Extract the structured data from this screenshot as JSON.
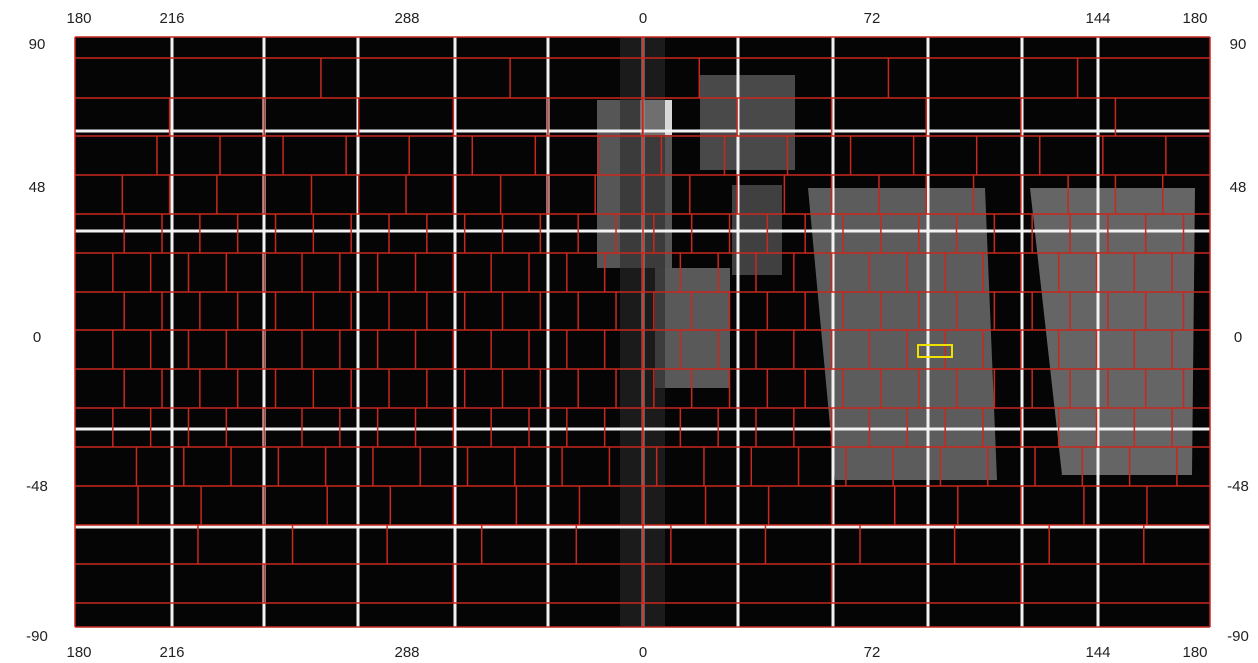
{
  "map": {
    "longitude_labels": [
      "180",
      "216",
      "288",
      "0",
      "72",
      "144",
      "180"
    ],
    "latitude_labels": [
      "90",
      "48",
      "0",
      "-48",
      "-90"
    ]
  }
}
